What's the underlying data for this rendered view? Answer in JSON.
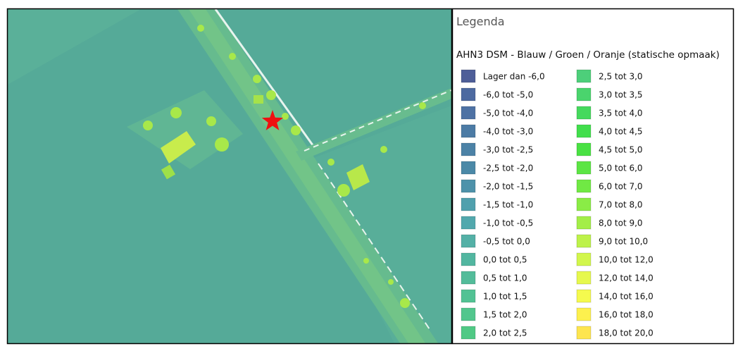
{
  "legend": {
    "title": "Legenda",
    "layer": "AHN3 DSM - Blauw / Groen / Oranje (statische opmaak)",
    "items": [
      {
        "label": "Lager dan -6,0",
        "color": "#4e5e98"
      },
      {
        "label": "-6,0 tot -5,0",
        "color": "#4d6aa0"
      },
      {
        "label": "-5,0 tot -4,0",
        "color": "#4e72a4"
      },
      {
        "label": "-4,0 tot -3,0",
        "color": "#4c7ba5"
      },
      {
        "label": "-3,0 tot -2,5",
        "color": "#4c82a6"
      },
      {
        "label": "-2,5 tot -2,0",
        "color": "#4b89a7"
      },
      {
        "label": "-2,0 tot -1,5",
        "color": "#4e92aa"
      },
      {
        "label": "-1,5 tot -1,0",
        "color": "#50a0ad"
      },
      {
        "label": "-1,0 tot -0,5",
        "color": "#52a8ad"
      },
      {
        "label": "-0,5 tot 0,0",
        "color": "#54b0a6"
      },
      {
        "label": "0,0 tot 0,5",
        "color": "#52b6a0"
      },
      {
        "label": "0,5 tot 1,0",
        "color": "#53bc9a"
      },
      {
        "label": "1,0 tot 1,5",
        "color": "#52c294"
      },
      {
        "label": "1,5 tot 2,0",
        "color": "#52c68d"
      },
      {
        "label": "2,0 tot 2,5",
        "color": "#50c985"
      },
      {
        "label": "2,5 tot 3,0",
        "color": "#4dcf7a"
      },
      {
        "label": "3,0 tot 3,5",
        "color": "#4ad46d"
      },
      {
        "label": "3,5 tot 4,0",
        "color": "#45d95d"
      },
      {
        "label": "4,0 tot 4,5",
        "color": "#41de4c"
      },
      {
        "label": "4,5 tot 5,0",
        "color": "#49e143"
      },
      {
        "label": "5,0 tot 6,0",
        "color": "#5ce544"
      },
      {
        "label": "6,0 tot 7,0",
        "color": "#70e944"
      },
      {
        "label": "7,0 tot 8,0",
        "color": "#8aec46"
      },
      {
        "label": "8,0 tot 9,0",
        "color": "#a3ee48"
      },
      {
        "label": "9,0 tot 10,0",
        "color": "#bdf24a"
      },
      {
        "label": "10,0 tot 12,0",
        "color": "#d2f64c"
      },
      {
        "label": "12,0 tot 14,0",
        "color": "#e6f84d"
      },
      {
        "label": "14,0 tot 16,0",
        "color": "#f5fa4e"
      },
      {
        "label": "16,0 tot 18,0",
        "color": "#fdf04e"
      },
      {
        "label": "18,0 tot 20,0",
        "color": "#fde54f"
      }
    ]
  }
}
